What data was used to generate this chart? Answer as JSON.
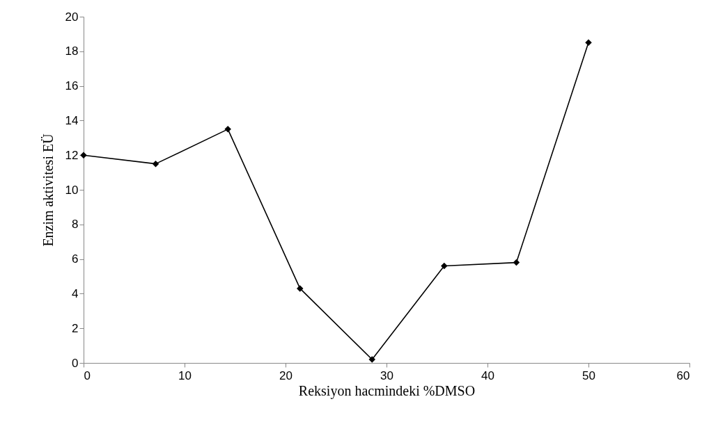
{
  "chart_data": {
    "type": "line",
    "xlabel": "Reksiyon hacmindeki %DMSO",
    "ylabel": "Enzim aktivitesi EÜ",
    "x": [
      0,
      7.14,
      14.29,
      21.43,
      28.57,
      35.71,
      42.86,
      50
    ],
    "series": [
      {
        "color": "#000000",
        "values": [
          12.0,
          11.5,
          13.5,
          4.3,
          0.2,
          5.6,
          5.8,
          18.5
        ]
      }
    ],
    "xlim": [
      0,
      60
    ],
    "xticks": [
      0,
      10,
      20,
      30,
      40,
      50,
      60
    ],
    "ylim": [
      0,
      20
    ],
    "yticks": [
      0,
      2,
      4,
      6,
      8,
      10,
      12,
      14,
      16,
      18,
      20
    ],
    "grid": false,
    "marker": "diamond",
    "line_style": "solid"
  }
}
